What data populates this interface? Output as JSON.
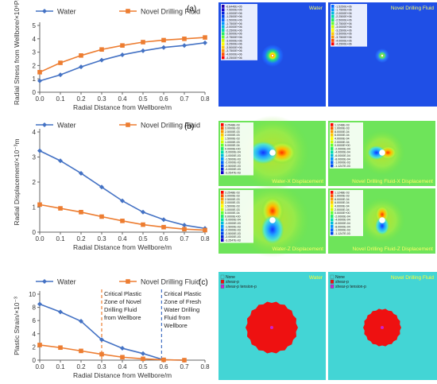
{
  "chart_data": [
    {
      "panel": "(a)",
      "type": "line",
      "x": [
        0,
        0.1,
        0.2,
        0.3,
        0.4,
        0.5,
        0.6,
        0.7,
        0.8
      ],
      "series": [
        {
          "name": "Water",
          "color": "#4472c4",
          "marker": "diamond",
          "values": [
            0.85,
            1.3,
            1.9,
            2.4,
            2.8,
            3.1,
            3.35,
            3.5,
            3.7
          ]
        },
        {
          "name": "Novel Drilling Fluid",
          "color": "#ed7d31",
          "marker": "square",
          "values": [
            1.5,
            2.2,
            2.75,
            3.2,
            3.5,
            3.75,
            3.9,
            4.0,
            4.1
          ]
        }
      ],
      "xlabel": "Radial Distance from Wellbore/m",
      "ylabel": "Radial Stress from Wellbore/×10⁶Pa",
      "xlim": [
        0,
        0.8
      ],
      "ylim": [
        0,
        5
      ],
      "xticks": [
        "0.0",
        "0.1",
        "0.2",
        "0.3",
        "0.4",
        "0.5",
        "0.6",
        "0.7",
        "0.8"
      ],
      "yticks": [
        "0",
        "1",
        "2",
        "3",
        "4",
        "5"
      ],
      "legend": "top"
    },
    {
      "panel": "(b)",
      "type": "line",
      "x": [
        0,
        0.1,
        0.2,
        0.3,
        0.4,
        0.5,
        0.6,
        0.7,
        0.8
      ],
      "series": [
        {
          "name": "Water",
          "color": "#4472c4",
          "marker": "diamond",
          "values": [
            3.25,
            2.85,
            2.35,
            1.8,
            1.25,
            0.8,
            0.5,
            0.28,
            0.15
          ]
        },
        {
          "name": "Novel Drilling Fluid",
          "color": "#ed7d31",
          "marker": "square",
          "values": [
            1.1,
            0.95,
            0.8,
            0.62,
            0.45,
            0.3,
            0.2,
            0.12,
            0.08
          ]
        }
      ],
      "xlabel": "Radial Distance from Wellbore/m",
      "ylabel": "Radial Displacement/×10⁻³m",
      "xlim": [
        0,
        0.8
      ],
      "ylim": [
        0,
        4
      ],
      "xticks": [
        "0.0",
        "0.1",
        "0.2",
        "0.3",
        "0.4",
        "0.5",
        "0.6",
        "0.7",
        "0.8"
      ],
      "yticks": [
        "0",
        "1",
        "2",
        "3",
        "4"
      ],
      "legend": "top"
    },
    {
      "panel": "(c)",
      "type": "line",
      "x": [
        0,
        0.1,
        0.2,
        0.3,
        0.4,
        0.5,
        0.6,
        0.7
      ],
      "series": [
        {
          "name": "Water",
          "color": "#4472c4",
          "marker": "diamond",
          "values": [
            8.5,
            7.3,
            5.9,
            3.1,
            1.8,
            1.0,
            0.05,
            0.0
          ]
        },
        {
          "name": "Novel Drilling Fluid",
          "color": "#ed7d31",
          "marker": "square",
          "values": [
            2.3,
            1.9,
            1.4,
            0.9,
            0.45,
            0.2,
            0.05,
            0.0
          ]
        }
      ],
      "xlabel": "Radial Distance from Wellbore/m",
      "ylabel": "Plastic Strain/×10⁻³",
      "xlim": [
        0,
        0.8
      ],
      "ylim": [
        0,
        10
      ],
      "xticks": [
        "0.0",
        "0.1",
        "0.2",
        "0.3",
        "0.4",
        "0.5",
        "0.6",
        "0.7",
        "0.8"
      ],
      "yticks": [
        "0",
        "2",
        "4",
        "6",
        "8",
        "10"
      ],
      "legend": "top",
      "reference_lines": [
        {
          "x": 0.3,
          "color": "#ed7d31",
          "lines": [
            "Critical Plastic",
            "Zone of Novel",
            "Drilling Fluid",
            "from Wellbore"
          ]
        },
        {
          "x": 0.59,
          "color": "#4472c4",
          "lines": [
            "Critical Plastic",
            "Zone of Fresh",
            "Water Drilling",
            "Fluid from",
            "Wellbore"
          ]
        }
      ]
    }
  ],
  "simulations": {
    "stress": {
      "left_title": "Water",
      "right_title": "Novel Drilling Fluid",
      "left_legend": [
        "-6.8446E+05",
        "-7.5000E+05",
        "-1.0000E+06",
        "-1.2500E+06",
        "-1.5000E+06",
        "-1.7500E+06",
        "-2.0000E+06",
        "-2.2500E+06",
        "-2.5000E+06",
        "-2.7500E+06",
        "-3.0000E+06",
        "-3.2500E+06",
        "-3.5000E+06",
        "-3.7500E+06",
        "-4.0000E+06",
        "-4.2500E+06"
      ],
      "right_legend": [
        "-1.5250E+06",
        "-1.7500E+06",
        "-2.0000E+06",
        "-2.2500E+06",
        "-2.5000E+06",
        "-2.7500E+06",
        "-3.0000E+06",
        "-3.2500E+06",
        "-3.5000E+06",
        "-3.7500E+06",
        "-4.0000E+06",
        "-4.2500E+06"
      ]
    },
    "displacement": {
      "x_left_title": "Water-X Displacement",
      "x_right_title": "Novel Drilling Fluid-X Displacement",
      "z_left_title": "Water-Z Displacement",
      "z_right_title": "Novel Drilling Fluid-Z Displacement",
      "left_legend": [
        "3.2548E-03",
        "3.0000E-03",
        "2.5000E-03",
        "2.0000E-03",
        "1.5000E-03",
        "1.0000E-03",
        "5.0000E-04",
        "0.0000E+00",
        "-5.0000E-04",
        "-1.0000E-03",
        "-1.5000E-03",
        "-2.0000E-03",
        "-2.5000E-03",
        "-3.0000E-03",
        "-3.2547E-03"
      ],
      "right_legend": [
        "1.1248E-03",
        "1.0000E-03",
        "8.0000E-04",
        "6.0000E-04",
        "4.0000E-04",
        "2.0000E-04",
        "0.0000E+00",
        "-2.0000E-04",
        "-4.0000E-04",
        "-6.0000E-04",
        "-8.0000E-04",
        "-1.0000E-03",
        "-1.1247E-03"
      ]
    },
    "plastic": {
      "left_title": "Water",
      "right_title": "Novel Drilling Fluid",
      "legend_items": [
        "None",
        "shear-p",
        "shear-p tension-p"
      ],
      "legend_colors": [
        "#43d5d5",
        "#ee1111",
        "#cc22cc"
      ]
    }
  }
}
